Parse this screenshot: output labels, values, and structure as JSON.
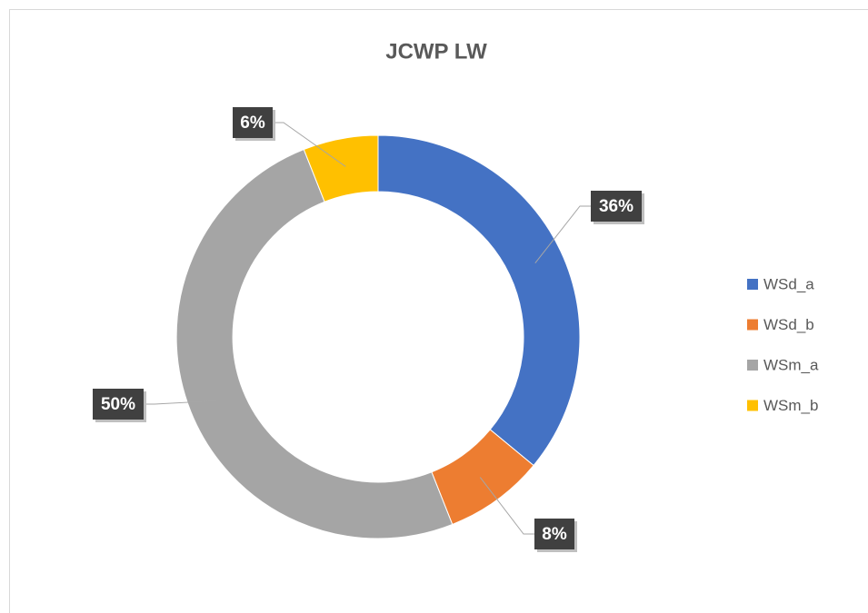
{
  "chart_data": {
    "type": "doughnut",
    "title": "JCWP LW",
    "categories": [
      "WSd_a",
      "WSd_b",
      "WSm_a",
      "WSm_b"
    ],
    "values": [
      36,
      8,
      50,
      6
    ],
    "value_labels": [
      "36%",
      "8%",
      "50%",
      "6%"
    ],
    "colors": [
      "#4472c4",
      "#ed7d31",
      "#a5a5a5",
      "#ffc000"
    ],
    "legend": "right"
  }
}
